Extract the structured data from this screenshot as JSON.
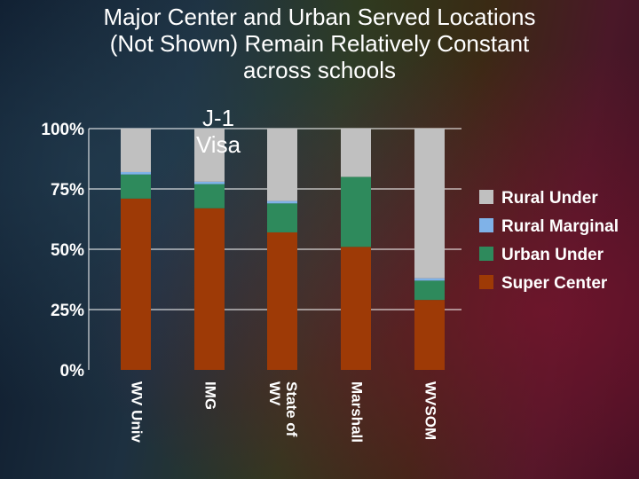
{
  "title_lines": [
    "Major Center and Urban Served Locations",
    "(Not Shown) Remain Relatively Constant",
    "across schools"
  ],
  "annotation_lines": [
    "J-1",
    "Visa"
  ],
  "colors": {
    "Super Center": "#9e3a06",
    "Urban Under": "#2e8a5c",
    "Rural Marginal": "#7fb2e8",
    "Rural Under": "#c0c0c0",
    "gridline": "#ffffff",
    "text": "#ffffff"
  },
  "chart_data": {
    "type": "bar",
    "stacked": true,
    "categories": [
      "WV Univ",
      "IMG",
      "State of WV",
      "Marshall",
      "WVSOM"
    ],
    "category_label_lines": [
      [
        "WV Univ"
      ],
      [
        "IMG"
      ],
      [
        "State of",
        "WV"
      ],
      [
        "Marshall"
      ],
      [
        "WVSOM"
      ]
    ],
    "series": [
      {
        "name": "Super Center",
        "values": [
          71,
          67,
          57,
          51,
          29
        ]
      },
      {
        "name": "Urban Under",
        "values": [
          10,
          10,
          12,
          29,
          8
        ]
      },
      {
        "name": "Rural Marginal",
        "values": [
          1,
          1,
          1,
          0,
          1
        ]
      },
      {
        "name": "Rural Under",
        "values": [
          18,
          22,
          30,
          20,
          62
        ]
      }
    ],
    "legend_order": [
      "Rural Under",
      "Rural Marginal",
      "Urban Under",
      "Super Center"
    ],
    "yticks": [
      "0%",
      "25%",
      "50%",
      "75%",
      "100%"
    ],
    "ylim": [
      0,
      100
    ],
    "grid": true,
    "legend_position": "right",
    "title": "Major Center and Urban Served Locations (Not Shown) Remain Relatively Constant across schools",
    "xlabel": "",
    "ylabel": ""
  }
}
